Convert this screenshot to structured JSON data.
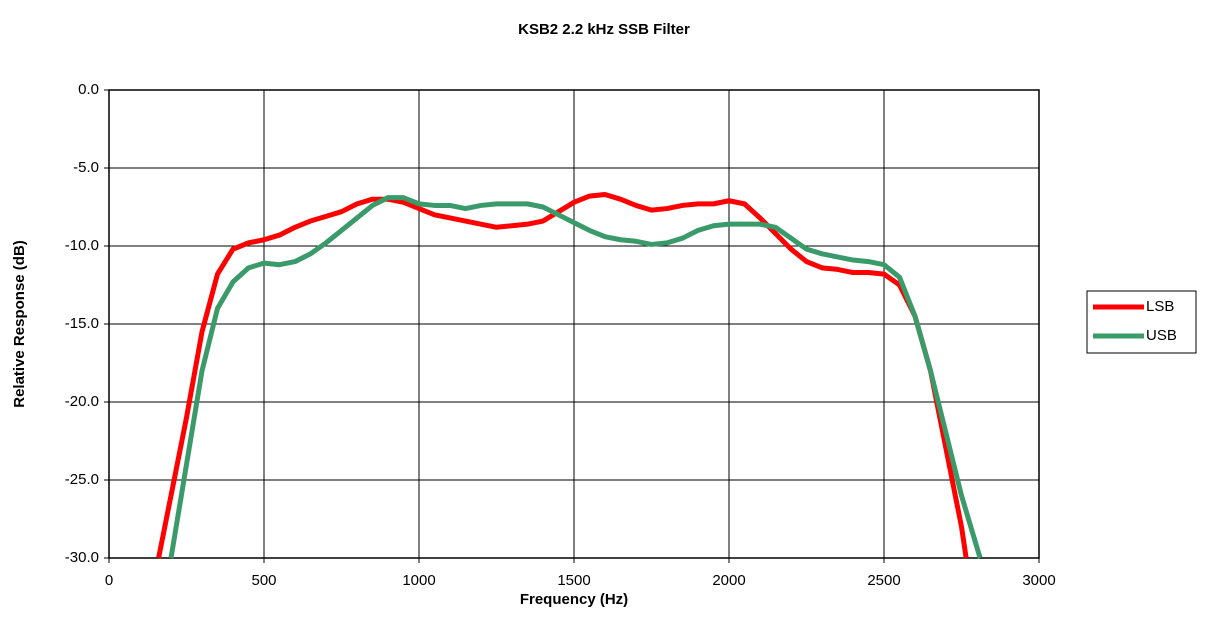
{
  "chart_data": {
    "type": "line",
    "title": "KSB2  2.2 kHz SSB Filter",
    "x_label": "Frequency (Hz)",
    "y_label": "Relative Response (dB)",
    "xlim": [
      0,
      3000
    ],
    "xticks": [
      0,
      500,
      1000,
      1500,
      2000,
      2500,
      3000
    ],
    "ylim": [
      -30,
      0
    ],
    "yticks": [
      {
        "value": 0,
        "label": "0.0"
      },
      {
        "value": -5,
        "label": "-5.0"
      },
      {
        "value": -10,
        "label": "-10.0"
      },
      {
        "value": -15,
        "label": "-15.0"
      },
      {
        "value": -20,
        "label": "-20.0"
      },
      {
        "value": -25,
        "label": "-25.0"
      },
      {
        "value": -30,
        "label": "-30.0"
      }
    ],
    "grid": true,
    "legend": "right",
    "series": [
      {
        "name": "LSB",
        "color": "#ff0000",
        "x": [
          160,
          200,
          250,
          300,
          350,
          400,
          450,
          500,
          550,
          600,
          650,
          700,
          750,
          800,
          850,
          900,
          950,
          1000,
          1050,
          1100,
          1150,
          1200,
          1250,
          1300,
          1350,
          1400,
          1450,
          1500,
          1550,
          1600,
          1650,
          1700,
          1750,
          1800,
          1850,
          1900,
          1950,
          2000,
          2050,
          2100,
          2150,
          2200,
          2250,
          2300,
          2350,
          2400,
          2450,
          2500,
          2550,
          2600,
          2650,
          2700,
          2750,
          2765
        ],
        "values": [
          -30,
          -26,
          -21,
          -15.5,
          -11.8,
          -10.2,
          -9.8,
          -9.6,
          -9.3,
          -8.8,
          -8.4,
          -8.1,
          -7.8,
          -7.3,
          -7.0,
          -7.0,
          -7.2,
          -7.6,
          -8.0,
          -8.2,
          -8.4,
          -8.6,
          -8.8,
          -8.7,
          -8.6,
          -8.4,
          -7.8,
          -7.2,
          -6.8,
          -6.7,
          -7.0,
          -7.4,
          -7.7,
          -7.6,
          -7.4,
          -7.3,
          -7.3,
          -7.1,
          -7.3,
          -8.2,
          -9.2,
          -10.2,
          -11.0,
          -11.4,
          -11.5,
          -11.7,
          -11.7,
          -11.8,
          -12.5,
          -14.5,
          -18,
          -23,
          -28,
          -30
        ]
      },
      {
        "name": "USB",
        "color": "#3a9a6a",
        "x": [
          200,
          250,
          300,
          350,
          400,
          450,
          500,
          550,
          600,
          650,
          700,
          750,
          800,
          850,
          900,
          950,
          1000,
          1050,
          1100,
          1150,
          1200,
          1250,
          1300,
          1350,
          1400,
          1450,
          1500,
          1550,
          1600,
          1650,
          1700,
          1750,
          1800,
          1850,
          1900,
          1950,
          2000,
          2050,
          2100,
          2150,
          2200,
          2250,
          2300,
          2350,
          2400,
          2450,
          2500,
          2550,
          2600,
          2650,
          2700,
          2750,
          2810
        ],
        "values": [
          -30,
          -24,
          -18,
          -14,
          -12.3,
          -11.4,
          -11.1,
          -11.2,
          -11.0,
          -10.5,
          -9.8,
          -9.0,
          -8.2,
          -7.4,
          -6.9,
          -6.9,
          -7.3,
          -7.4,
          -7.4,
          -7.6,
          -7.4,
          -7.3,
          -7.3,
          -7.3,
          -7.5,
          -8.0,
          -8.5,
          -9.0,
          -9.4,
          -9.6,
          -9.7,
          -9.9,
          -9.8,
          -9.5,
          -9.0,
          -8.7,
          -8.6,
          -8.6,
          -8.6,
          -8.8,
          -9.5,
          -10.2,
          -10.5,
          -10.7,
          -10.9,
          -11.0,
          -11.2,
          -12,
          -14.5,
          -18,
          -22,
          -26,
          -30
        ]
      }
    ]
  }
}
